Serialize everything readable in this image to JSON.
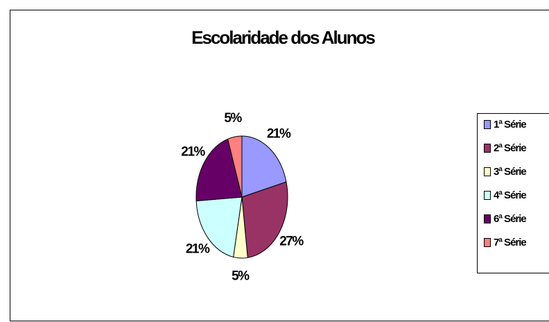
{
  "chart_data": {
    "type": "pie",
    "title": "Escolaridade dos Alunos",
    "categories": [
      "1ª Série",
      "2ª Série",
      "3ª Série",
      "4ª Série",
      "6ª Série",
      "7ª Série"
    ],
    "values": [
      21,
      27,
      5,
      21,
      21,
      5
    ],
    "value_labels": [
      "21%",
      "27%",
      "5%",
      "21%",
      "21%",
      "5%"
    ],
    "colors": [
      "#9999ff",
      "#993366",
      "#ffffcc",
      "#ccffff",
      "#660066",
      "#ff8080"
    ],
    "legend": "right"
  }
}
